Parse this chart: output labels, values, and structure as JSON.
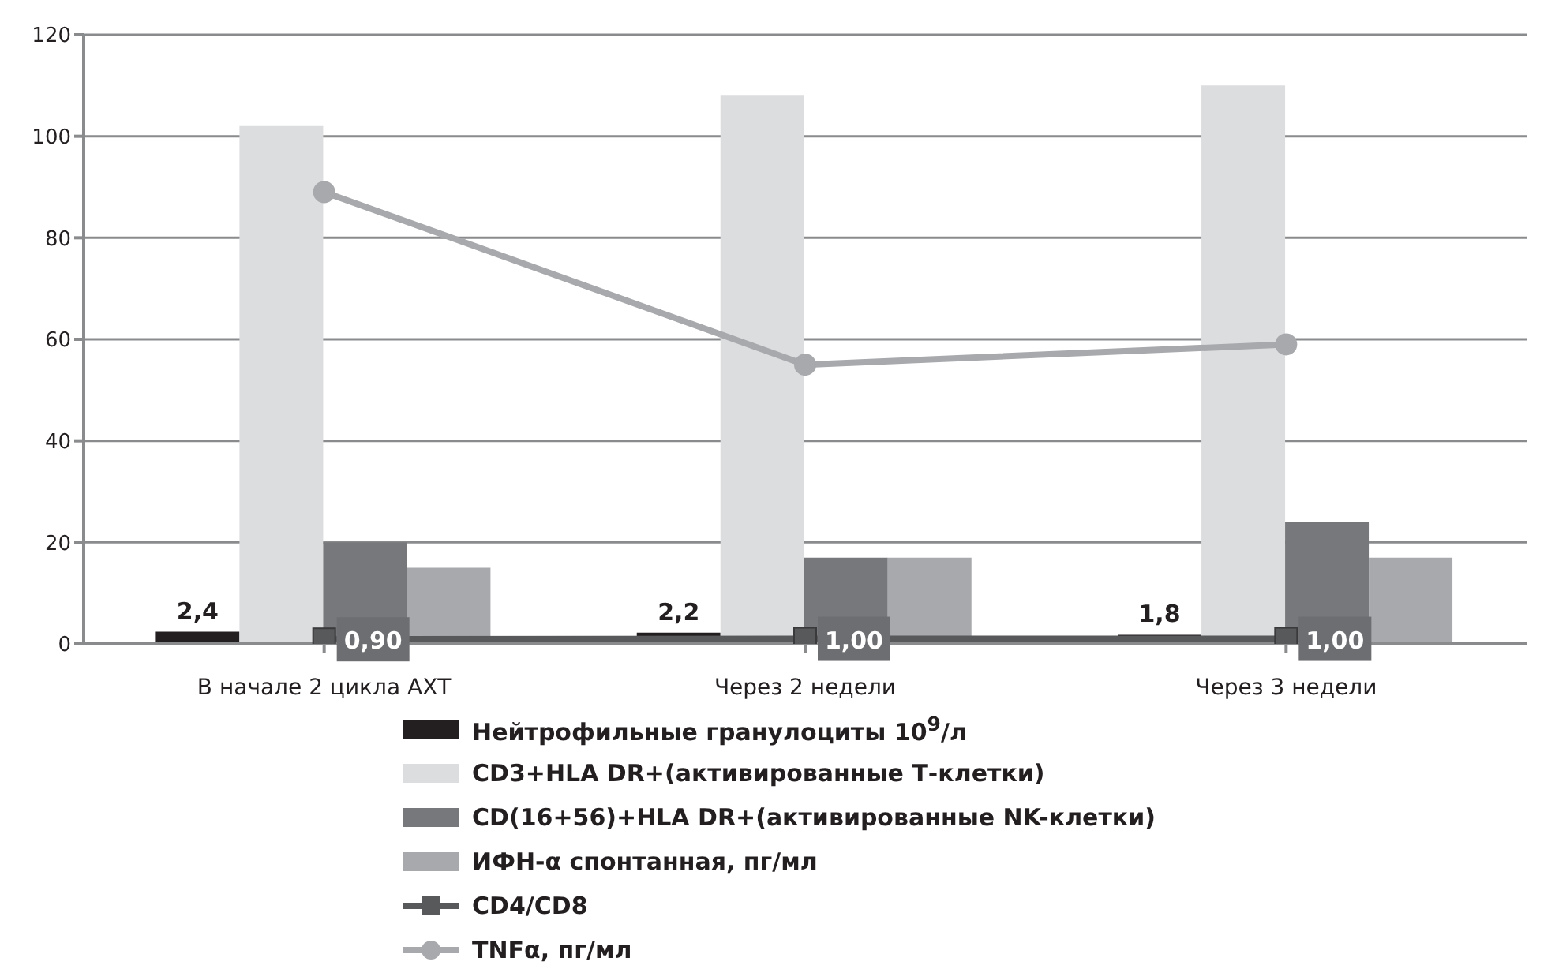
{
  "chart_data": {
    "type": "bar",
    "categories": [
      "В начале 2 цикла АХТ",
      "Через 2 недели",
      "Через 3 недели"
    ],
    "series": [
      {
        "name": "Нейтрофильные гранулоциты 10$^{9}$/л",
        "color": "#231f20",
        "values": [
          2.4,
          2.2,
          1.8
        ],
        "value_labels": [
          "2,4",
          "2,2",
          "1,8"
        ]
      },
      {
        "name": "CD3+HLA DR+(активированные Т-клетки)",
        "color": "#dcdddf",
        "values": [
          102,
          108,
          110
        ]
      },
      {
        "name": "CD(16+56)+HLA DR+(активированные NK-клетки)",
        "color": "#77787b",
        "values": [
          20,
          17,
          24
        ]
      },
      {
        "name": "ИФН-α спонтанная, пг/мл",
        "color": "#a7a9ac",
        "values": [
          15,
          17,
          17
        ]
      },
      {
        "name": "CD4/CD8",
        "type": "line",
        "color": "#58595b",
        "marker": "square",
        "values": [
          0.9,
          1.0,
          1.0
        ],
        "value_labels": [
          "0,90",
          "1,00",
          "1,00"
        ]
      },
      {
        "name": "TNFα, пг/мл",
        "type": "line",
        "color": "#a7a9ac",
        "marker": "circle",
        "values": [
          89,
          55,
          59
        ]
      }
    ],
    "ylim": [
      0,
      120
    ],
    "yticks": [
      0,
      20,
      40,
      60,
      80,
      100,
      120
    ],
    "grid": "y",
    "legend": "bottom"
  }
}
